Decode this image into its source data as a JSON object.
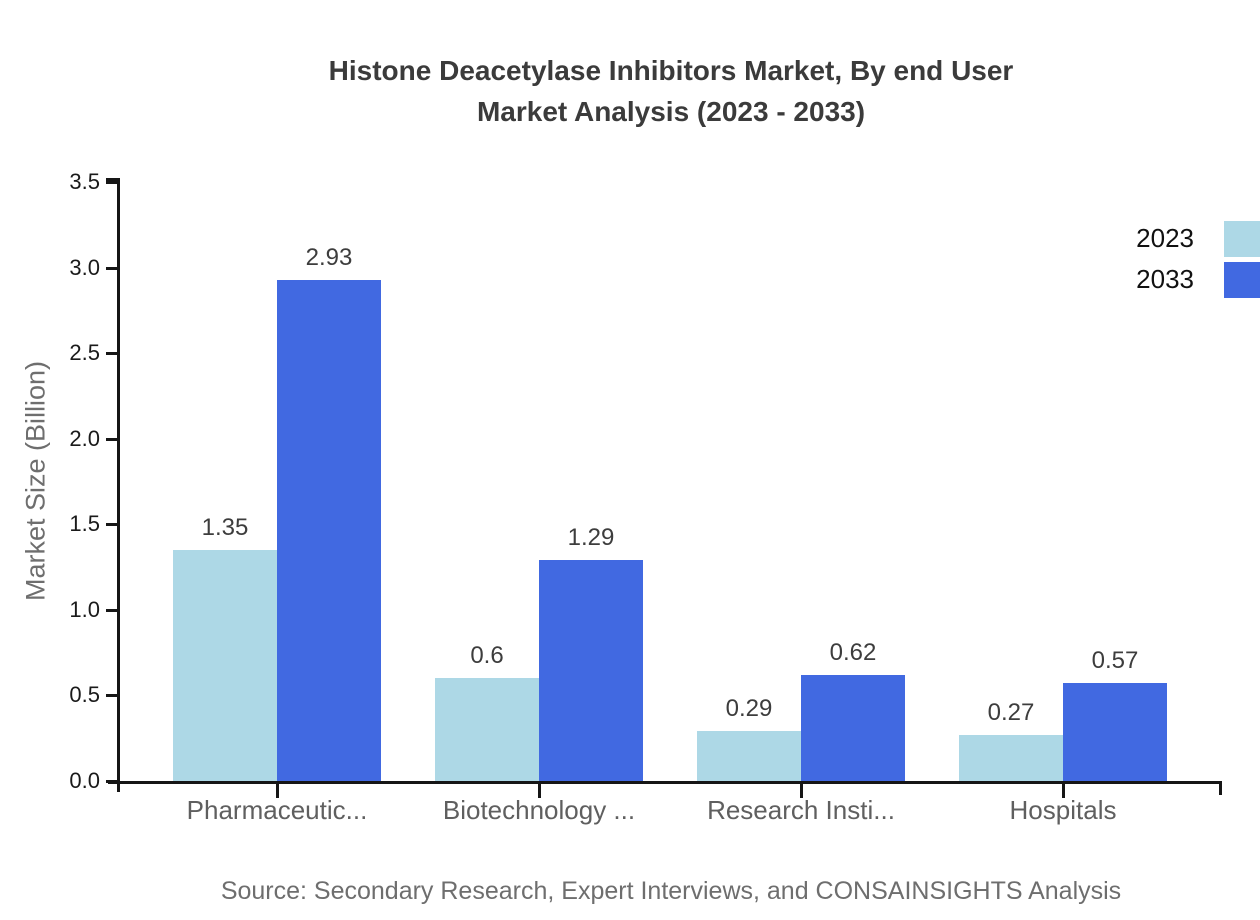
{
  "chart_data": {
    "type": "bar",
    "title": "Histone Deacetylase Inhibitors Market, By end User",
    "subtitle": "Market Analysis (2023 - 2033)",
    "ylabel": "Market Size (Billion)",
    "xlabel": "",
    "categories": [
      "Pharmaceutic...",
      "Biotechnology ...",
      "Research Insti...",
      "Hospitals"
    ],
    "series": [
      {
        "name": "2023",
        "color": "#ADD8E6",
        "values": [
          1.35,
          0.6,
          0.29,
          0.27
        ]
      },
      {
        "name": "2033",
        "color": "#4169E1",
        "values": [
          2.93,
          1.29,
          0.62,
          0.57
        ]
      }
    ],
    "value_labels": {
      "2023": [
        "1.35",
        "0.6",
        "0.29",
        "0.27"
      ],
      "2033": [
        "2.93",
        "1.29",
        "0.62",
        "0.57"
      ]
    },
    "ylim": [
      0,
      3.5
    ],
    "ytick_step": 0.5,
    "ytick_labels": [
      "0.0",
      "0.5",
      "1.0",
      "1.5",
      "2.0",
      "2.5",
      "3.0",
      "3.5"
    ],
    "grid": false,
    "legend_position": "top-right-edge",
    "source": "Source: Secondary Research, Expert Interviews, and CONSAINSIGHTS Analysis"
  },
  "colors": {
    "axis": "#161616",
    "title_text": "#3b3b3b",
    "tick_label": "#1a1a1a",
    "category_label": "#5f5f5f",
    "value_label": "#3d3d3d",
    "muted_text": "#6e6e6e",
    "background": "#ffffff"
  }
}
